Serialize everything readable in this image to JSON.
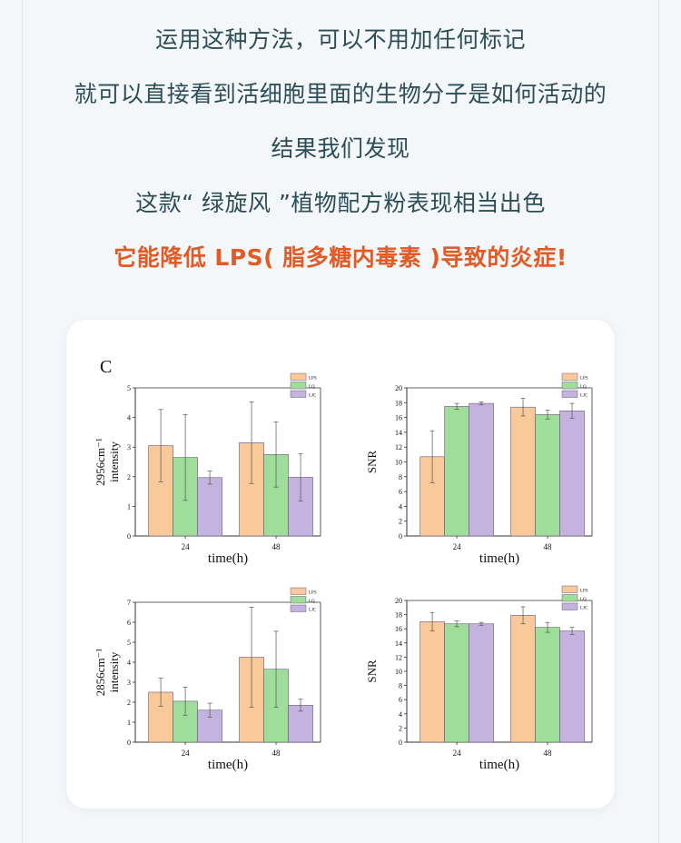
{
  "intro": {
    "line1": "运用这种方法，可以不用加任何标记",
    "line2": "就可以直接看到活细胞里面的生物分子是如何活动的",
    "line3": "结果我们发现",
    "line4": "这款“ 绿旋风 ”植物配方粉表现相当出色",
    "highlight": "它能降低 LPS( 脂多糖内毒素 )导致的炎症!"
  },
  "figure": {
    "panel_label": "C"
  },
  "colors": {
    "LPS": "#f9c99a",
    "LQ": "#9edd9a",
    "LJC": "#c4b3de",
    "edge": "#6b5a7a"
  },
  "chart_data": [
    {
      "type": "bar",
      "categories": [
        "24",
        "48"
      ],
      "xlabel": "time(h)",
      "ylabel_line1": "2956cm⁻¹",
      "ylabel_line2": "intensity",
      "ylim": [
        0,
        5
      ],
      "yticks": [
        "0",
        "1",
        "2",
        "3",
        "4",
        "5"
      ],
      "legend": [
        "LPS",
        "LQ",
        "LJC"
      ],
      "series": [
        {
          "name": "LPS",
          "values": [
            3.05,
            3.15
          ],
          "err": [
            1.22,
            1.38
          ]
        },
        {
          "name": "LQ",
          "values": [
            2.65,
            2.75
          ],
          "err": [
            1.45,
            1.1
          ]
        },
        {
          "name": "LJC",
          "values": [
            1.97,
            1.98
          ],
          "err": [
            0.22,
            0.8
          ]
        }
      ]
    },
    {
      "type": "bar",
      "categories": [
        "24",
        "48"
      ],
      "xlabel": "time(h)",
      "ylabel_line1": "SNR",
      "ylabel_line2": "",
      "ylim": [
        0,
        20
      ],
      "yticks": [
        "0",
        "2",
        "4",
        "6",
        "8",
        "10",
        "12",
        "14",
        "16",
        "18",
        "20"
      ],
      "legend": [
        "LPS",
        "LQ",
        "LJC"
      ],
      "series": [
        {
          "name": "LPS",
          "values": [
            10.7,
            17.4
          ],
          "err": [
            3.5,
            1.2
          ]
        },
        {
          "name": "LQ",
          "values": [
            17.5,
            16.4
          ],
          "err": [
            0.4,
            0.6
          ]
        },
        {
          "name": "LJC",
          "values": [
            17.9,
            16.9
          ],
          "err": [
            0.2,
            1.0
          ]
        }
      ]
    },
    {
      "type": "bar",
      "categories": [
        "24",
        "48"
      ],
      "xlabel": "time(h)",
      "ylabel_line1": "2856cm⁻¹",
      "ylabel_line2": "intensity",
      "ylim": [
        0,
        7
      ],
      "yticks": [
        "0",
        "1",
        "2",
        "3",
        "4",
        "5",
        "6",
        "7"
      ],
      "legend": [
        "LPS",
        "LQ",
        "LJC"
      ],
      "series": [
        {
          "name": "LPS",
          "values": [
            2.5,
            4.25
          ],
          "err": [
            0.7,
            2.5
          ]
        },
        {
          "name": "LQ",
          "values": [
            2.05,
            3.65
          ],
          "err": [
            0.7,
            1.9
          ]
        },
        {
          "name": "LJC",
          "values": [
            1.6,
            1.85
          ],
          "err": [
            0.35,
            0.3
          ]
        }
      ]
    },
    {
      "type": "bar",
      "categories": [
        "24",
        "48"
      ],
      "xlabel": "time(h)",
      "ylabel_line1": "SNR",
      "ylabel_line2": "",
      "ylim": [
        0,
        20
      ],
      "yticks": [
        "0",
        "2",
        "4",
        "6",
        "8",
        "10",
        "12",
        "14",
        "16",
        "18",
        "20"
      ],
      "legend": [
        "LPS",
        "LQ",
        "LJC"
      ],
      "series": [
        {
          "name": "LPS",
          "values": [
            17.0,
            17.9
          ],
          "err": [
            1.3,
            1.2
          ]
        },
        {
          "name": "LQ",
          "values": [
            16.7,
            16.2
          ],
          "err": [
            0.4,
            0.7
          ]
        },
        {
          "name": "LJC",
          "values": [
            16.7,
            15.7
          ],
          "err": [
            0.2,
            0.5
          ]
        }
      ]
    }
  ]
}
